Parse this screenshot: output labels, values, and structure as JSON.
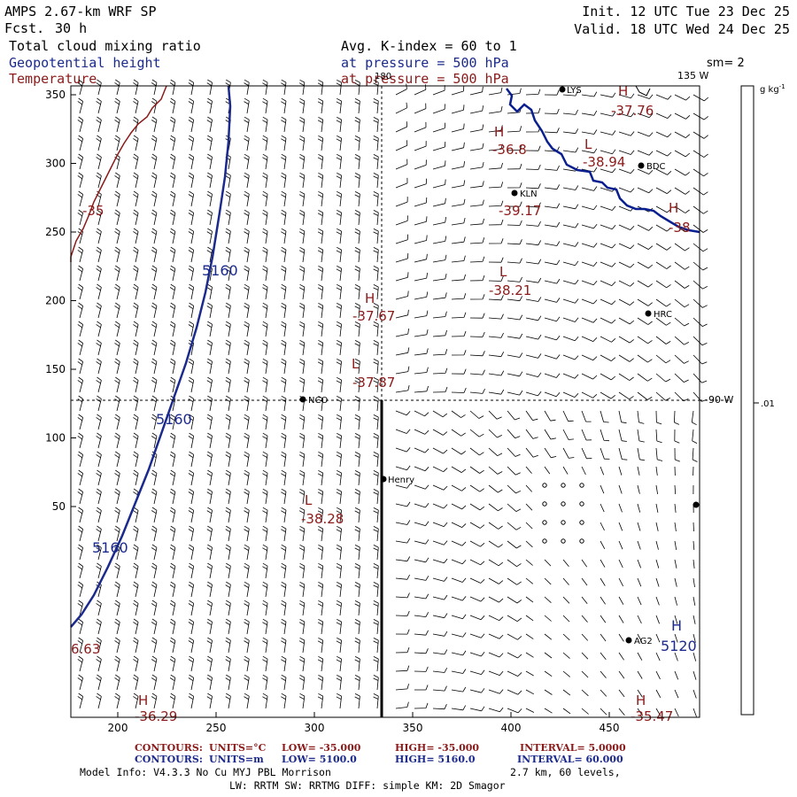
{
  "header": {
    "model": "AMPS 2.67-km WRF SP",
    "fcst_label": "Fcst.",
    "fcst_value": "30 h",
    "init": "Init. 12 UTC Tue 23 Dec 25",
    "valid": "Valid. 18 UTC Wed 24 Dec 25",
    "field1": "Total cloud mixing ratio",
    "field2": "Geopotential height",
    "field3": "Temperature",
    "avg": "Avg. K-index =  60 to   1",
    "press1": "at pressure =  500 hPa",
    "press2": "at pressure =  500 hPa",
    "sm": "sm= 2",
    "lon_top": "135 W",
    "lon_mid": "90 W",
    "grid_top": "180"
  },
  "colorbar": {
    "unit": "g kg",
    "unit_sup": "-1",
    "tick": ".01"
  },
  "axes": {
    "x_ticks": [
      "200",
      "250",
      "300",
      "350",
      "400",
      "450"
    ],
    "y_ticks": [
      "350",
      "300",
      "250",
      "200",
      "150",
      "100",
      "50"
    ]
  },
  "stations": [
    {
      "name": "LYS"
    },
    {
      "name": "BDC"
    },
    {
      "name": "KLN"
    },
    {
      "name": "HRC"
    },
    {
      "name": "NCO"
    },
    {
      "name": "Henry"
    },
    {
      "name": "AG2"
    }
  ],
  "temperature_labels": [
    {
      "hl": "H",
      "value": "-37.76"
    },
    {
      "hl": "H",
      "value": "-36.8"
    },
    {
      "hl": "L",
      "value": "-38.94"
    },
    {
      "hl": "",
      "value": "-39.17"
    },
    {
      "hl": "H",
      "value": "-38"
    },
    {
      "hl": "L",
      "value": "-38.21"
    },
    {
      "hl": "H",
      "value": "-37.67"
    },
    {
      "hl": "L",
      "value": "-37.87"
    },
    {
      "hl": "L",
      "value": "-38.28"
    },
    {
      "hl": "",
      "value": "-35"
    },
    {
      "hl": "",
      "value": "6.63"
    },
    {
      "hl": "H",
      "value": "-36.29"
    },
    {
      "hl": "H",
      "value": "-35.47"
    }
  ],
  "height_labels": [
    {
      "value": "5160"
    },
    {
      "value": "5160"
    },
    {
      "value": "5160"
    },
    {
      "hl": "H",
      "value": "5120"
    }
  ],
  "footer": {
    "row1_label": "CONTOURS:",
    "row1_units": "UNITS=°C",
    "row1_low": "LOW= -35.000",
    "row1_high": "HIGH= -35.000",
    "row1_interval": "INTERVAL=   5.0000",
    "row2_label": "CONTOURS:",
    "row2_units": "UNITS=m",
    "row2_low": "LOW=  5100.0",
    "row2_high": "HIGH=  5160.0",
    "row2_interval": "INTERVAL=   60.000",
    "model_info": "Model Info: V4.3.3    No Cu   MYJ PBL  Morrison",
    "resolution": "2.7 km,  60 levels,",
    "physics": "LW: RRTM SW: RRTMG   DIFF: simple KM: 2D Smagor"
  },
  "colors": {
    "temperature": "#8b1a1a",
    "height": "#1b2a8c",
    "coast": "#0a1f8f",
    "barb": "#000000"
  }
}
